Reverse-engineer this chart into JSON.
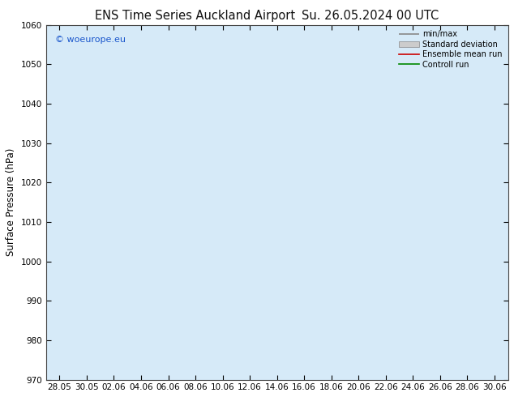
{
  "title": "ENS Time Series Auckland Airport",
  "title2": "Su. 26.05.2024 00 UTC",
  "ylabel": "Surface Pressure (hPa)",
  "ylim": [
    970,
    1060
  ],
  "yticks": [
    970,
    980,
    990,
    1000,
    1010,
    1020,
    1030,
    1040,
    1050,
    1060
  ],
  "xtick_labels": [
    "28.05",
    "30.05",
    "02.06",
    "04.06",
    "06.06",
    "08.06",
    "10.06",
    "12.06",
    "14.06",
    "16.06",
    "18.06",
    "20.06",
    "22.06",
    "24.06",
    "26.06",
    "28.06",
    "30.06"
  ],
  "background_color": "#ffffff",
  "plot_bg_color": "#ffffff",
  "band_color": "#d6eaf8",
  "copyright_text": "© woeurope.eu",
  "legend_entries": [
    "min/max",
    "Standard deviation",
    "Ensemble mean run",
    "Controll run"
  ],
  "title_fontsize": 10.5,
  "tick_fontsize": 7.5,
  "ylabel_fontsize": 8.5,
  "band_indices": [
    0,
    2,
    4,
    6,
    8,
    10,
    12,
    14,
    16
  ],
  "copyright_color": "#1a56cc"
}
